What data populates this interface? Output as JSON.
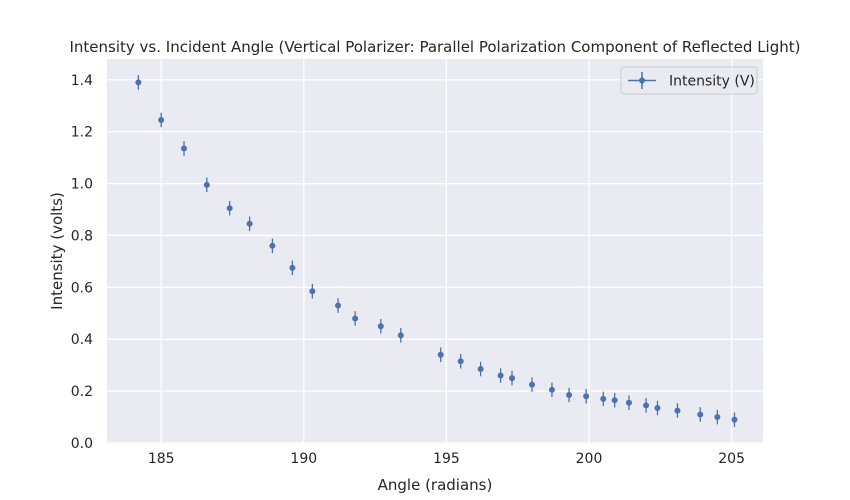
{
  "chart_data": {
    "type": "scatter",
    "title": "Intensity vs. Incident Angle (Vertical Polarizer: Parallel Polarization Component of Reflected Light)",
    "xlabel": "Angle (radians)",
    "ylabel": "Intensity (volts)",
    "xlim": [
      183.1,
      206.1
    ],
    "ylim": [
      0,
      1.48
    ],
    "xticks": [
      185,
      190,
      195,
      200,
      205
    ],
    "yticks": [
      0.0,
      0.2,
      0.4,
      0.6,
      0.8,
      1.0,
      1.2,
      1.4
    ],
    "xtick_labels": [
      "185",
      "190",
      "195",
      "200",
      "205"
    ],
    "ytick_labels": [
      "0.0",
      "0.2",
      "0.4",
      "0.6",
      "0.8",
      "1.0",
      "1.2",
      "1.4"
    ],
    "grid": true,
    "legend_position": "top-right",
    "marker": "circle with vertical error bars",
    "color": "#4c72b0",
    "background": "#eaeaf2",
    "series": [
      {
        "name": "Intensity (V)",
        "x": [
          184.2,
          185.0,
          185.8,
          186.6,
          187.4,
          188.1,
          188.9,
          189.6,
          190.3,
          191.2,
          191.8,
          192.7,
          193.4,
          194.8,
          195.5,
          196.2,
          196.9,
          197.3,
          198.0,
          198.7,
          199.3,
          199.9,
          200.5,
          200.9,
          201.4,
          202.0,
          202.4,
          203.1,
          203.9,
          204.5,
          205.1
        ],
        "y": [
          1.39,
          1.245,
          1.135,
          0.995,
          0.905,
          0.845,
          0.76,
          0.675,
          0.585,
          0.53,
          0.48,
          0.45,
          0.415,
          0.34,
          0.315,
          0.285,
          0.26,
          0.25,
          0.225,
          0.205,
          0.185,
          0.18,
          0.17,
          0.165,
          0.155,
          0.145,
          0.135,
          0.125,
          0.11,
          0.1,
          0.09
        ],
        "yerr": [
          0.028,
          0.028,
          0.028,
          0.028,
          0.028,
          0.028,
          0.028,
          0.028,
          0.028,
          0.028,
          0.028,
          0.028,
          0.028,
          0.028,
          0.028,
          0.028,
          0.028,
          0.028,
          0.028,
          0.028,
          0.028,
          0.028,
          0.028,
          0.028,
          0.028,
          0.028,
          0.028,
          0.028,
          0.028,
          0.028,
          0.028
        ]
      }
    ]
  }
}
